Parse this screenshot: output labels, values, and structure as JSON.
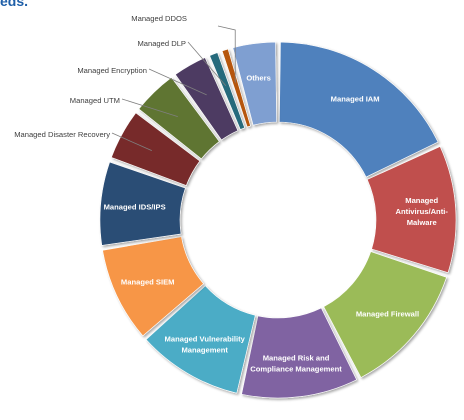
{
  "heading_fragment": "eds.",
  "chart_data": {
    "type": "pie",
    "title": "",
    "variant": "donut",
    "start_angle_deg": 0,
    "direction": "clockwise",
    "unit": "percent (estimated from slice angles)",
    "slices": [
      {
        "label": "Managed IAM",
        "value": 18.0,
        "color": "#4f81bd",
        "label_placement": "inside"
      },
      {
        "label": "Managed Antivirus/Anti-Malware",
        "value": 12.0,
        "color": "#c0504d",
        "label_placement": "inside"
      },
      {
        "label": "Managed Firewall",
        "value": 12.5,
        "color": "#9bbb59",
        "label_placement": "inside"
      },
      {
        "label": "Managed Risk and Compliance Management",
        "value": 11.0,
        "color": "#8064a2",
        "label_placement": "inside"
      },
      {
        "label": "Managed Vulnerability Management",
        "value": 10.0,
        "color": "#4bacc6",
        "label_placement": "inside"
      },
      {
        "label": "Managed SIEM",
        "value": 9.0,
        "color": "#f79646",
        "label_placement": "inside"
      },
      {
        "label": "Managed IDS/IPS",
        "value": 8.0,
        "color": "#2c4d75",
        "label_placement": "inside"
      },
      {
        "label": "Managed Disaster Recovery",
        "value": 5.0,
        "color": "#772c2a",
        "label_placement": "outside"
      },
      {
        "label": "Managed UTM",
        "value": 4.5,
        "color": "#5f7530",
        "label_placement": "outside"
      },
      {
        "label": "Managed Encryption",
        "value": 3.5,
        "color": "#4d3b62",
        "label_placement": "outside"
      },
      {
        "label": "Managed DLP",
        "value": 1.2,
        "color": "#276a7c",
        "label_placement": "outside"
      },
      {
        "label": "Managed DDOS",
        "value": 1.0,
        "color": "#b65708",
        "label_placement": "outside"
      },
      {
        "label": "Others",
        "value": 4.3,
        "color": "#7f9fd1",
        "label_placement": "inside"
      }
    ]
  }
}
